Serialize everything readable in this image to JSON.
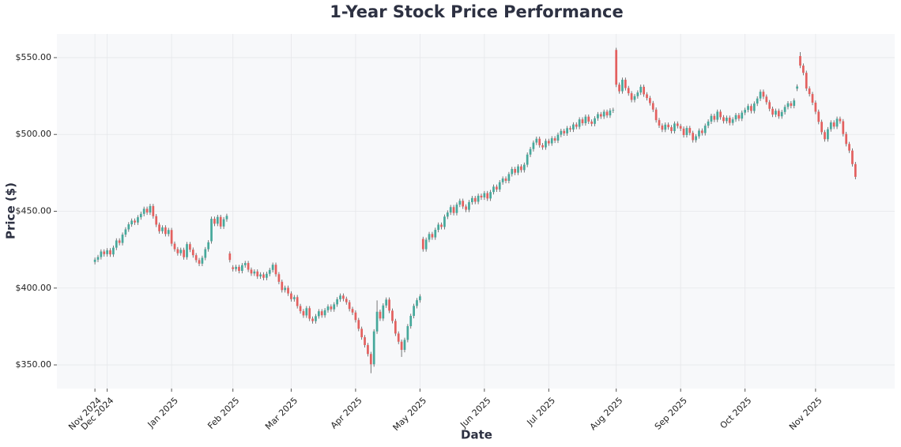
{
  "chart_data": {
    "type": "candlestick",
    "title": "1-Year Stock Price Performance",
    "x_label": "Date",
    "y_label": "Price ($)",
    "up_color": "#46a89b",
    "down_color": "#e3605f",
    "wick_color": "#555555",
    "grid": true,
    "xlim": [
      -12.4,
      260.8
    ],
    "ylim": [
      334.6,
      565.4
    ],
    "xticks": [
      {
        "value": 0,
        "label": "Nov 2024"
      },
      {
        "value": 4,
        "label": "Dec 2024"
      },
      {
        "value": 25,
        "label": "Jan 2025"
      },
      {
        "value": 45,
        "label": "Feb 2025"
      },
      {
        "value": 64,
        "label": "Mar 2025"
      },
      {
        "value": 85,
        "label": "Apr 2025"
      },
      {
        "value": 106,
        "label": "May 2025"
      },
      {
        "value": 127,
        "label": "Jun 2025"
      },
      {
        "value": 148,
        "label": "Jul 2025"
      },
      {
        "value": 170,
        "label": "Aug 2025"
      },
      {
        "value": 191,
        "label": "Sep 2025"
      },
      {
        "value": 212,
        "label": "Oct 2025"
      },
      {
        "value": 235,
        "label": "Nov 2025"
      }
    ],
    "yticks": [
      {
        "value": 350,
        "label": "$350.00"
      },
      {
        "value": 400,
        "label": "$400.00"
      },
      {
        "value": 450,
        "label": "$450.00"
      },
      {
        "value": 500,
        "label": "$500.00"
      },
      {
        "value": 550,
        "label": "$550.00"
      }
    ],
    "x": [
      0,
      1,
      2,
      3,
      4,
      5,
      6,
      7,
      8,
      9,
      10,
      11,
      12,
      13,
      14,
      15,
      16,
      17,
      18,
      19,
      20,
      21,
      22,
      23,
      24,
      25,
      26,
      27,
      28,
      29,
      30,
      31,
      32,
      33,
      34,
      35,
      36,
      37,
      38,
      39,
      40,
      41,
      42,
      43,
      44,
      45,
      46,
      47,
      48,
      49,
      50,
      51,
      52,
      53,
      54,
      55,
      56,
      57,
      58,
      59,
      60,
      61,
      62,
      63,
      64,
      65,
      66,
      67,
      68,
      69,
      70,
      71,
      72,
      73,
      74,
      75,
      76,
      77,
      78,
      79,
      80,
      81,
      82,
      83,
      84,
      85,
      86,
      87,
      88,
      89,
      90,
      91,
      92,
      93,
      94,
      95,
      96,
      97,
      98,
      99,
      100,
      101,
      102,
      103,
      104,
      105,
      106,
      107,
      108,
      109,
      110,
      111,
      112,
      113,
      114,
      115,
      116,
      117,
      118,
      119,
      120,
      121,
      122,
      123,
      124,
      125,
      126,
      127,
      128,
      129,
      130,
      131,
      132,
      133,
      134,
      135,
      136,
      137,
      138,
      139,
      140,
      141,
      142,
      143,
      144,
      145,
      146,
      147,
      148,
      149,
      150,
      151,
      152,
      153,
      154,
      155,
      156,
      157,
      158,
      159,
      160,
      161,
      162,
      163,
      164,
      165,
      166,
      167,
      168,
      169,
      170,
      171,
      172,
      173,
      174,
      175,
      176,
      177,
      178,
      179,
      180,
      181,
      182,
      183,
      184,
      185,
      186,
      187,
      188,
      189,
      190,
      191,
      192,
      193,
      194,
      195,
      196,
      197,
      198,
      199,
      200,
      201,
      202,
      203,
      204,
      205,
      206,
      207,
      208,
      209,
      210,
      211,
      212,
      213,
      214,
      215,
      216,
      217,
      218,
      219,
      220,
      221,
      222,
      223,
      224,
      225,
      226,
      227,
      228,
      229,
      230,
      231,
      232,
      233,
      234,
      235,
      236,
      237,
      238,
      239,
      240,
      241,
      242,
      243,
      244,
      245,
      246,
      247,
      248
    ],
    "open": [
      417.0,
      418.5,
      420.2,
      423.8,
      422.1,
      424.6,
      421.9,
      426.3,
      431.0,
      429.4,
      434.8,
      438.2,
      441.5,
      443.9,
      442.7,
      446.1,
      448.3,
      451.6,
      449.2,
      453.4,
      446.8,
      441.3,
      437.0,
      439.5,
      435.2,
      437.8,
      428.9,
      425.3,
      422.7,
      424.9,
      420.1,
      428.6,
      425.0,
      421.4,
      418.2,
      415.9,
      419.7,
      425.3,
      430.5,
      445.1,
      441.9,
      446.3,
      440.1,
      444.8,
      422.5,
      413.5,
      412.4,
      413.8,
      411.2,
      414.9,
      416.3,
      412.0,
      409.5,
      410.8,
      407.6,
      408.9,
      406.7,
      409.3,
      411.8,
      415.2,
      409.0,
      404.1,
      398.7,
      400.2,
      396.5,
      392.8,
      394.1,
      388.3,
      385.0,
      382.2,
      386.9,
      380.1,
      378.5,
      381.7,
      384.9,
      382.3,
      385.6,
      388.0,
      386.2,
      389.4,
      392.7,
      395.1,
      393.0,
      390.8,
      386.4,
      384.1,
      379.2,
      373.5,
      368.0,
      362.9,
      357.1,
      350.4,
      371.8,
      384.6,
      380.2,
      388.7,
      392.5,
      385.3,
      378.6,
      370.4,
      365.1,
      359.8,
      366.3,
      375.2,
      381.9,
      388.4,
      392.1,
      432.0,
      425.3,
      431.5,
      435.2,
      433.0,
      437.9,
      441.3,
      439.8,
      446.5,
      449.2,
      452.7,
      448.9,
      454.3,
      456.8,
      453.1,
      451.0,
      455.9,
      458.6,
      456.2,
      460.1,
      459.0,
      461.8,
      458.3,
      462.5,
      466.0,
      464.2,
      468.9,
      471.3,
      469.8,
      474.2,
      477.5,
      475.1,
      479.2,
      476.8,
      480.3,
      486.9,
      490.5,
      494.7,
      497.2,
      493.0,
      491.6,
      495.8,
      494.2,
      497.5,
      496.0,
      499.8,
      502.3,
      500.7,
      504.1,
      503.2,
      506.5,
      505.0,
      509.8,
      507.3,
      511.6,
      508.4,
      506.9,
      510.5,
      513.2,
      511.7,
      514.8,
      512.4,
      515.6,
      555.0,
      532.4,
      528.1,
      535.6,
      530.2,
      526.8,
      522.5,
      524.9,
      527.3,
      531.0,
      526.1,
      523.7,
      520.4,
      516.2,
      509.3,
      505.8,
      503.1,
      506.4,
      504.7,
      502.2,
      507.1,
      505.5,
      503.8,
      499.6,
      504.2,
      501.0,
      496.3,
      498.8,
      502.5,
      500.9,
      505.7,
      508.4,
      512.1,
      509.6,
      514.8,
      511.2,
      508.7,
      510.9,
      507.5,
      509.8,
      512.6,
      510.3,
      514.2,
      516.0,
      518.5,
      515.3,
      520.1,
      523.4,
      527.8,
      524.6,
      521.0,
      516.7,
      512.9,
      515.4,
      511.8,
      514.6,
      517.9,
      520.3,
      518.6,
      529.8,
      551.0,
      544.8,
      540.1,
      529.9,
      526.3,
      520.7,
      514.8,
      508.2,
      501.5,
      496.9,
      503.4,
      507.8,
      505.1,
      510.2,
      508.6,
      500.3,
      493.8,
      489.5,
      480.7
    ],
    "high": [
      419.9,
      421.6,
      425.2,
      425.2,
      426.0,
      426.0,
      427.7,
      432.4,
      432.4,
      436.2,
      439.6,
      442.9,
      445.3,
      445.3,
      447.5,
      449.7,
      453.0,
      453.0,
      454.8,
      454.8,
      448.2,
      442.7,
      440.9,
      440.9,
      439.2,
      439.2,
      430.3,
      426.7,
      426.3,
      426.3,
      430.0,
      430.0,
      426.4,
      422.8,
      419.6,
      421.1,
      426.7,
      431.2,
      446.5,
      446.5,
      447.7,
      447.7,
      446.2,
      448.4,
      423.9,
      414.9,
      415.2,
      415.2,
      416.3,
      417.7,
      417.7,
      413.4,
      412.2,
      412.2,
      410.3,
      410.3,
      410.7,
      413.2,
      416.6,
      416.6,
      410.4,
      405.5,
      401.6,
      401.6,
      397.9,
      395.5,
      395.5,
      389.7,
      386.4,
      388.3,
      388.3,
      381.5,
      383.1,
      386.3,
      386.3,
      387.0,
      389.4,
      389.4,
      390.8,
      394.1,
      396.5,
      396.5,
      394.4,
      392.2,
      387.8,
      385.5,
      380.6,
      374.9,
      369.4,
      364.3,
      358.5,
      373.2,
      392.0,
      386.0,
      390.1,
      393.9,
      393.9,
      386.7,
      380.0,
      371.8,
      366.5,
      367.7,
      376.6,
      383.3,
      389.8,
      393.5,
      396.0,
      433.4,
      432.9,
      436.6,
      436.6,
      439.3,
      442.7,
      442.7,
      447.9,
      450.6,
      454.1,
      454.1,
      455.7,
      458.2,
      458.2,
      454.5,
      457.3,
      460.0,
      460.0,
      461.5,
      461.5,
      463.2,
      463.2,
      463.9,
      467.4,
      467.4,
      470.3,
      472.7,
      472.7,
      475.6,
      478.9,
      478.9,
      480.6,
      480.6,
      481.7,
      488.3,
      491.9,
      496.1,
      498.6,
      498.6,
      494.4,
      497.2,
      497.2,
      498.9,
      498.9,
      501.2,
      503.7,
      503.7,
      505.5,
      505.5,
      507.9,
      507.9,
      511.2,
      511.2,
      513.0,
      513.0,
      509.8,
      511.9,
      514.6,
      514.6,
      516.2,
      516.2,
      517.0,
      517.4,
      556.4,
      533.8,
      537.0,
      537.0,
      531.6,
      528.2,
      526.3,
      528.7,
      532.4,
      532.4,
      527.5,
      525.1,
      521.8,
      517.6,
      510.7,
      507.2,
      507.8,
      507.8,
      506.1,
      508.5,
      508.5,
      506.9,
      505.2,
      505.6,
      505.6,
      502.4,
      500.2,
      503.9,
      503.9,
      507.1,
      509.8,
      513.5,
      513.5,
      516.2,
      516.2,
      512.6,
      512.3,
      512.3,
      511.2,
      514.0,
      514.0,
      515.6,
      517.4,
      519.9,
      519.9,
      521.5,
      524.8,
      529.2,
      529.2,
      526.0,
      522.4,
      518.1,
      516.8,
      516.8,
      516.0,
      519.3,
      521.7,
      521.7,
      523.5,
      532.6,
      553.6,
      546.2,
      541.5,
      531.3,
      527.7,
      522.1,
      516.2,
      509.6,
      502.9,
      504.8,
      509.2,
      509.2,
      511.6,
      511.6,
      510.0,
      501.7,
      495.2,
      490.9,
      482.1
    ],
    "low": [
      415.4,
      416.9,
      418.6,
      420.5,
      420.5,
      420.3,
      420.3,
      424.7,
      427.8,
      427.8,
      433.2,
      436.6,
      439.9,
      441.1,
      441.1,
      444.5,
      446.7,
      447.6,
      447.6,
      445.2,
      439.7,
      435.4,
      435.4,
      433.6,
      433.6,
      427.3,
      423.7,
      421.1,
      421.1,
      418.5,
      418.5,
      423.4,
      419.8,
      416.6,
      414.3,
      414.3,
      418.1,
      423.7,
      428.9,
      440.3,
      440.3,
      438.5,
      438.5,
      443.2,
      416.7,
      410.8,
      410.8,
      409.6,
      409.6,
      413.3,
      410.4,
      407.9,
      407.9,
      406.0,
      406.0,
      405.1,
      405.1,
      407.7,
      410.2,
      407.4,
      402.5,
      397.1,
      397.1,
      394.9,
      391.2,
      391.2,
      386.7,
      383.4,
      380.6,
      380.6,
      378.5,
      376.9,
      376.9,
      380.1,
      380.7,
      380.7,
      384.0,
      384.6,
      384.6,
      387.8,
      391.1,
      391.4,
      389.2,
      384.8,
      382.5,
      377.6,
      371.9,
      366.4,
      361.3,
      355.5,
      344.6,
      348.8,
      370.2,
      378.6,
      378.6,
      387.1,
      383.7,
      377.0,
      368.8,
      363.5,
      355.2,
      358.2,
      364.7,
      373.6,
      380.3,
      386.8,
      390.5,
      423.7,
      423.7,
      429.9,
      431.4,
      431.4,
      436.3,
      438.2,
      438.2,
      444.9,
      447.6,
      447.3,
      447.3,
      452.7,
      451.5,
      449.4,
      449.4,
      454.3,
      454.6,
      454.6,
      457.4,
      457.4,
      456.7,
      456.7,
      460.9,
      462.6,
      462.6,
      467.3,
      468.2,
      468.2,
      472.6,
      473.5,
      473.5,
      475.2,
      475.2,
      478.7,
      485.3,
      488.9,
      493.1,
      491.4,
      490.0,
      490.0,
      492.6,
      492.6,
      494.4,
      494.4,
      498.2,
      499.1,
      499.1,
      501.6,
      501.6,
      503.4,
      503.4,
      505.7,
      505.7,
      506.8,
      505.3,
      505.3,
      508.9,
      510.1,
      510.1,
      510.8,
      510.8,
      514.0,
      530.8,
      526.5,
      526.5,
      528.6,
      525.2,
      520.9,
      520.9,
      523.3,
      525.7,
      524.5,
      522.1,
      518.8,
      514.6,
      507.7,
      504.2,
      501.5,
      501.5,
      503.1,
      500.6,
      500.6,
      503.9,
      502.2,
      498.0,
      498.0,
      499.4,
      494.7,
      494.7,
      497.2,
      499.3,
      499.3,
      504.1,
      506.8,
      508.0,
      508.0,
      509.6,
      507.1,
      507.1,
      505.9,
      505.9,
      508.2,
      508.7,
      508.7,
      512.6,
      514.4,
      513.7,
      513.7,
      518.5,
      521.8,
      523.0,
      519.4,
      515.1,
      511.3,
      511.3,
      510.2,
      510.2,
      513.0,
      516.3,
      517.0,
      517.0,
      528.2,
      543.2,
      538.5,
      528.3,
      524.7,
      519.1,
      513.2,
      506.6,
      499.9,
      495.3,
      495.3,
      501.8,
      503.5,
      503.5,
      507.0,
      498.7,
      492.2,
      487.9,
      479.1,
      470.8
    ],
    "close": [
      418.5,
      420.2,
      423.8,
      422.1,
      424.6,
      421.9,
      426.3,
      431.0,
      429.4,
      434.8,
      438.2,
      441.5,
      443.9,
      442.7,
      446.1,
      448.3,
      451.6,
      449.2,
      453.4,
      446.8,
      441.3,
      437.0,
      439.5,
      435.2,
      437.8,
      428.9,
      425.3,
      422.7,
      424.9,
      420.1,
      428.6,
      425.0,
      421.4,
      418.2,
      415.9,
      419.7,
      425.3,
      429.8,
      445.1,
      441.9,
      446.3,
      440.1,
      444.8,
      447.0,
      418.3,
      412.4,
      413.8,
      411.2,
      414.9,
      416.3,
      412.0,
      409.5,
      410.8,
      407.6,
      408.9,
      406.7,
      409.3,
      411.8,
      415.2,
      409.0,
      404.1,
      398.7,
      400.2,
      396.5,
      392.8,
      394.1,
      388.3,
      385.0,
      382.2,
      386.9,
      380.1,
      378.5,
      381.7,
      384.9,
      382.3,
      385.6,
      388.0,
      386.2,
      389.4,
      392.7,
      395.1,
      393.0,
      390.8,
      386.4,
      384.1,
      379.2,
      373.5,
      368.0,
      362.9,
      357.1,
      350.4,
      371.8,
      384.6,
      380.2,
      388.7,
      392.5,
      385.3,
      378.6,
      370.4,
      365.1,
      359.8,
      366.3,
      375.2,
      381.9,
      388.4,
      392.1,
      394.6,
      425.3,
      431.5,
      435.2,
      433.0,
      437.9,
      441.3,
      439.8,
      446.5,
      449.2,
      452.7,
      448.9,
      454.3,
      456.8,
      453.1,
      451.0,
      455.9,
      458.6,
      456.2,
      460.1,
      459.0,
      461.8,
      458.3,
      462.5,
      466.0,
      464.2,
      468.9,
      471.3,
      469.8,
      474.2,
      477.5,
      475.1,
      479.2,
      476.8,
      480.3,
      486.9,
      490.5,
      494.7,
      497.2,
      493.0,
      491.6,
      495.8,
      494.2,
      497.5,
      496.0,
      499.8,
      502.3,
      500.7,
      504.1,
      503.2,
      506.5,
      505.0,
      509.8,
      507.3,
      511.6,
      508.4,
      506.9,
      510.5,
      513.2,
      511.7,
      514.8,
      512.4,
      515.6,
      516.0,
      532.4,
      528.1,
      535.6,
      530.2,
      526.8,
      522.5,
      524.9,
      527.3,
      531.0,
      526.1,
      523.7,
      520.4,
      516.2,
      509.3,
      505.8,
      503.1,
      506.4,
      504.7,
      502.2,
      507.1,
      505.5,
      503.8,
      499.6,
      504.2,
      501.0,
      496.3,
      498.8,
      502.5,
      500.9,
      505.7,
      508.4,
      512.1,
      509.6,
      514.8,
      511.2,
      508.7,
      510.9,
      507.5,
      509.8,
      512.6,
      510.3,
      514.2,
      516.0,
      518.5,
      515.3,
      520.1,
      523.4,
      527.8,
      524.6,
      521.0,
      516.7,
      512.9,
      515.4,
      511.8,
      514.6,
      517.9,
      520.3,
      518.6,
      522.1,
      531.2,
      544.8,
      540.1,
      529.9,
      526.3,
      520.7,
      514.8,
      508.2,
      501.5,
      496.9,
      503.4,
      507.8,
      505.1,
      510.2,
      508.6,
      500.3,
      493.8,
      489.5,
      480.7,
      472.4
    ]
  }
}
